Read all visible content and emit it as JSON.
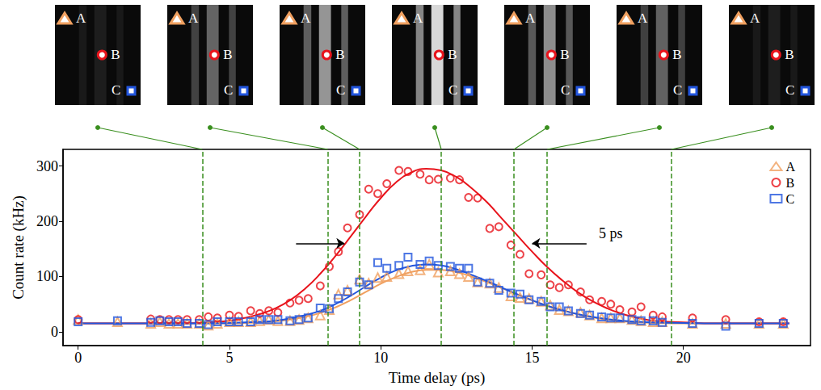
{
  "chart_data": {
    "type": "scatter",
    "x_label": "Time delay (ps)",
    "y_label": "Count rate (kHz)",
    "xlim": [
      -0.5,
      24.2
    ],
    "ylim": [
      -25,
      330
    ],
    "xticks": [
      0,
      5,
      10,
      15,
      20
    ],
    "yticks": [
      0,
      100,
      200,
      300
    ],
    "legend": "upper right",
    "grid": false,
    "frames": {
      "markers": [
        "A",
        "B",
        "C"
      ],
      "delays": [
        4.1,
        8.25,
        9.3,
        12.0,
        14.4,
        15.5,
        19.6
      ]
    },
    "annotation": {
      "text": "5 ps",
      "x": 17.6,
      "y": 178,
      "arrow_y": 160,
      "left_arrow": [
        7.2,
        8.8
      ],
      "right_arrow": [
        16.8,
        15.0
      ]
    },
    "series": [
      {
        "name": "A",
        "color": "#f0a060",
        "marker": "triangle",
        "x": [
          0,
          1.3,
          2.4,
          2.7,
          3,
          3.3,
          3.6,
          4,
          4.3,
          4.6,
          5,
          5.3,
          5.7,
          6,
          6.3,
          6.6,
          7,
          7.3,
          7.6,
          8,
          8.3,
          8.6,
          8.9,
          9.3,
          9.6,
          9.9,
          10.2,
          10.6,
          10.9,
          11.3,
          11.6,
          11.9,
          12.3,
          12.6,
          12.9,
          13.2,
          13.6,
          13.9,
          14.3,
          14.6,
          14.9,
          15.3,
          15.6,
          15.9,
          16.2,
          16.6,
          16.9,
          17.3,
          17.6,
          17.9,
          18.3,
          18.6,
          19,
          19.3,
          20.3,
          21.4,
          22.5,
          23.3
        ],
        "values": [
          22,
          18,
          15,
          18,
          15,
          15,
          15,
          15,
          12,
          15,
          18,
          18,
          18,
          20,
          22,
          20,
          20,
          22,
          25,
          30,
          40,
          68,
          75,
          95,
          88,
          98,
          100,
          105,
          110,
          112,
          122,
          108,
          110,
          105,
          100,
          90,
          88,
          80,
          65,
          62,
          60,
          55,
          48,
          40,
          38,
          35,
          30,
          25,
          25,
          25,
          22,
          20,
          18,
          18,
          15,
          15,
          15,
          15
        ],
        "fit_x": [
          0,
          1,
          2,
          3,
          4,
          5,
          5.5,
          6,
          6.5,
          7,
          7.5,
          8,
          8.5,
          9,
          9.5,
          10,
          10.5,
          11,
          11.5,
          12,
          12.5,
          13,
          13.5,
          14,
          14.5,
          15,
          15.5,
          16,
          16.5,
          17,
          17.5,
          18,
          18.5,
          19,
          20,
          21,
          22,
          23,
          23.5
        ],
        "fit_values": [
          15,
          15,
          15,
          15,
          15,
          15,
          16,
          17,
          19,
          22,
          27,
          34,
          44,
          57,
          72,
          87,
          99,
          108,
          112,
          112,
          108,
          100,
          90,
          79,
          68,
          57,
          47,
          39,
          32,
          26,
          22,
          19,
          17,
          16,
          15,
          15,
          15,
          15,
          15
        ]
      },
      {
        "name": "B",
        "color": "#e8141c",
        "marker": "circle",
        "x": [
          0,
          2.4,
          2.7,
          3,
          3.3,
          3.6,
          4,
          4.3,
          4.6,
          5,
          5.3,
          5.7,
          6,
          6.3,
          6.6,
          7,
          7.3,
          7.6,
          8,
          8.3,
          8.6,
          8.9,
          9.3,
          9.6,
          9.9,
          10.2,
          10.6,
          10.9,
          11.3,
          11.6,
          11.9,
          12.3,
          12.6,
          12.9,
          13.2,
          13.6,
          13.9,
          14.3,
          14.6,
          14.9,
          15.3,
          15.6,
          15.9,
          16.2,
          16.6,
          16.9,
          17.3,
          17.6,
          17.9,
          18.3,
          18.6,
          19,
          19.3,
          20.3,
          21.4,
          22.5,
          23.3
        ],
        "values": [
          22,
          23,
          22,
          22,
          22,
          22,
          22,
          27,
          25,
          30,
          28,
          38,
          33,
          38,
          35,
          52,
          57,
          60,
          83,
          118,
          145,
          188,
          212,
          258,
          250,
          268,
          292,
          290,
          285,
          275,
          276,
          278,
          275,
          243,
          242,
          187,
          190,
          157,
          140,
          105,
          103,
          85,
          80,
          85,
          72,
          58,
          55,
          50,
          40,
          36,
          45,
          30,
          27,
          25,
          22,
          18,
          18
        ],
        "fit_x": [
          0,
          1,
          2,
          3,
          4,
          5,
          5.5,
          6,
          6.5,
          7,
          7.5,
          8,
          8.5,
          9,
          9.5,
          10,
          10.5,
          11,
          11.5,
          12,
          12.5,
          13,
          13.5,
          14,
          14.5,
          15,
          15.5,
          16,
          16.5,
          17,
          17.5,
          18,
          18.5,
          19,
          20,
          21,
          22,
          23,
          23.5
        ],
        "fit_values": [
          15,
          15,
          15,
          15,
          16,
          20,
          25,
          32,
          42,
          57,
          78,
          105,
          137,
          172,
          208,
          242,
          270,
          288,
          295,
          292,
          280,
          260,
          235,
          205,
          175,
          145,
          117,
          93,
          72,
          55,
          42,
          32,
          25,
          20,
          17,
          15,
          15,
          15,
          15
        ]
      },
      {
        "name": "C",
        "color": "#2255dd",
        "marker": "square",
        "x": [
          0,
          1.3,
          2.4,
          2.7,
          3,
          3.3,
          3.6,
          4,
          4.3,
          4.6,
          5,
          5.3,
          5.7,
          6,
          6.3,
          6.6,
          7,
          7.3,
          7.6,
          8,
          8.3,
          8.6,
          8.9,
          9.3,
          9.6,
          9.9,
          10.2,
          10.6,
          10.9,
          11.3,
          11.6,
          11.9,
          12.3,
          12.6,
          12.9,
          13.2,
          13.6,
          13.9,
          14.3,
          14.6,
          14.9,
          15.3,
          15.6,
          15.9,
          16.2,
          16.6,
          16.9,
          17.3,
          17.6,
          17.9,
          18.3,
          18.6,
          19,
          19.3,
          20.3,
          21.4,
          22.5,
          23.3
        ],
        "values": [
          18,
          20,
          17,
          20,
          18,
          18,
          15,
          15,
          13,
          18,
          18,
          18,
          18,
          22,
          22,
          22,
          20,
          22,
          25,
          43,
          42,
          60,
          72,
          90,
          85,
          125,
          115,
          120,
          135,
          122,
          128,
          120,
          118,
          115,
          115,
          90,
          88,
          75,
          70,
          68,
          58,
          55,
          45,
          45,
          38,
          33,
          30,
          27,
          25,
          25,
          22,
          20,
          20,
          17,
          15,
          10,
          15,
          15
        ],
        "fit_x": [
          0,
          1,
          2,
          3,
          4,
          5,
          5.5,
          6,
          6.5,
          7,
          7.5,
          8,
          8.5,
          9,
          9.5,
          10,
          10.5,
          11,
          11.5,
          12,
          12.5,
          13,
          13.5,
          14,
          14.5,
          15,
          15.5,
          16,
          16.5,
          17,
          17.5,
          18,
          18.5,
          19,
          20,
          21,
          22,
          23,
          23.5
        ],
        "fit_values": [
          15,
          15,
          15,
          15,
          15,
          16,
          17,
          18,
          20,
          24,
          30,
          38,
          50,
          65,
          82,
          98,
          111,
          119,
          122,
          120,
          113,
          103,
          92,
          80,
          68,
          57,
          47,
          39,
          32,
          27,
          23,
          20,
          18,
          17,
          16,
          15,
          15,
          15,
          15
        ]
      }
    ]
  }
}
